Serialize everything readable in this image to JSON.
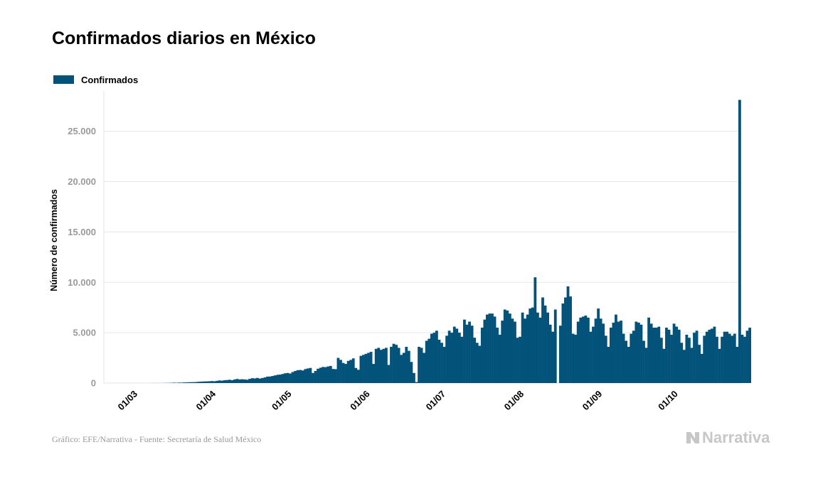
{
  "title": "Confirmados diarios en México",
  "legend": {
    "label": "Confirmados",
    "color": "#03527a"
  },
  "footer": "Gráfico: EFE/Narrativa - Fuente: Secretaría de Salud México",
  "brand": {
    "name": "Narrativa",
    "icon": "narrativa-logo-icon"
  },
  "chart_data": {
    "type": "bar",
    "title": "Confirmados diarios en México",
    "ylabel": "Número de confirmados",
    "xlabel": "",
    "ylim": [
      0,
      29000
    ],
    "yticks": [
      0,
      5000,
      10000,
      15000,
      20000,
      25000
    ],
    "ytick_labels": [
      "0",
      "5.000",
      "10.000",
      "15.000",
      "20.000",
      "25.000"
    ],
    "xtick_labels": [
      "01/03",
      "01/04",
      "01/05",
      "01/06",
      "01/07",
      "01/08",
      "01/09",
      "01/10"
    ],
    "xtick_days": [
      0,
      31,
      61,
      92,
      122,
      153,
      184,
      214
    ],
    "grid": true,
    "legend_position": "top-left",
    "series": [
      {
        "name": "Confirmados",
        "color": "#03527a",
        "values": [
          1,
          1,
          1,
          1,
          1,
          1,
          1,
          2,
          4,
          4,
          5,
          5,
          8,
          12,
          15,
          26,
          41,
          29,
          48,
          46,
          63,
          72,
          84,
          90,
          94,
          110,
          130,
          150,
          160,
          170,
          180,
          200,
          180,
          220,
          260,
          240,
          280,
          300,
          330,
          280,
          360,
          410,
          360,
          380,
          360,
          330,
          420,
          480,
          460,
          510,
          450,
          500,
          560,
          640,
          650,
          700,
          760,
          820,
          840,
          900,
          970,
          1000,
          950,
          1100,
          1200,
          1280,
          1300,
          1250,
          1390,
          1450,
          1500,
          1000,
          1200,
          1420,
          1520,
          1600,
          1580,
          1650,
          1700,
          1400,
          1380,
          2500,
          2300,
          2000,
          1900,
          2200,
          2300,
          2450,
          1500,
          1320,
          2700,
          2800,
          2900,
          3000,
          3100,
          1900,
          3400,
          3500,
          3300,
          3400,
          3500,
          1800,
          3600,
          3900,
          3800,
          3500,
          2800,
          3000,
          3600,
          3200,
          2100,
          1000,
          100,
          3600,
          3500,
          3000,
          4200,
          4400,
          4900,
          5000,
          5200,
          4300,
          4000,
          3600,
          4700,
          5200,
          5000,
          5600,
          5400,
          5000,
          4600,
          6300,
          5800,
          6100,
          5700,
          4500,
          4000,
          3700,
          5500,
          6300,
          6800,
          6900,
          6900,
          6600,
          5500,
          4800,
          6200,
          7300,
          7200,
          6900,
          6400,
          6100,
          4500,
          4600,
          7000,
          6400,
          6800,
          7400,
          7500,
          10500,
          7000,
          6500,
          8500,
          7700,
          7000,
          5800,
          5100,
          7300,
          0,
          5700,
          7900,
          8500,
          9600,
          8600,
          4900,
          4800,
          6100,
          6500,
          6600,
          6700,
          6500,
          5100,
          5600,
          6400,
          7400,
          6400,
          5900,
          4700,
          3600,
          5500,
          6000,
          6800,
          6100,
          6200,
          4900,
          4200,
          3600,
          4900,
          5200,
          6100,
          6000,
          5800,
          4200,
          3500,
          6500,
          5900,
          5500,
          5500,
          5600,
          4500,
          3400,
          5500,
          5300,
          4800,
          5900,
          5600,
          5300,
          4000,
          3300,
          4800,
          4500,
          3500,
          5000,
          5200,
          3800,
          2900,
          4700,
          5100,
          5300,
          5400,
          5600,
          4600,
          3400,
          4600,
          5100,
          5100,
          4900,
          4700,
          4900,
          3600,
          28115,
          4800,
          4600,
          5200,
          5500
        ]
      }
    ]
  }
}
